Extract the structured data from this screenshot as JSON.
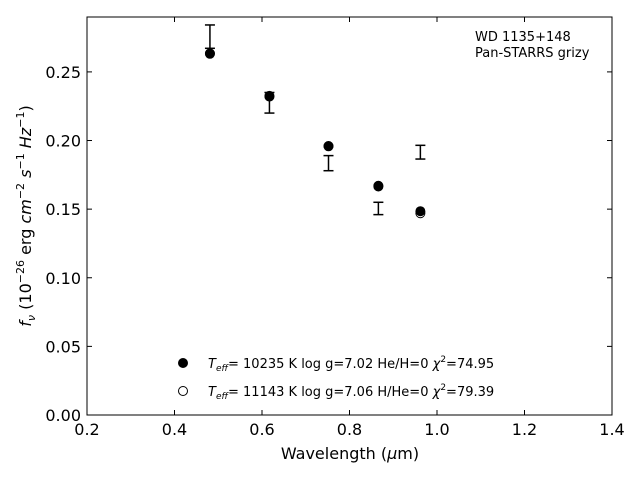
{
  "chart_data": {
    "type": "scatter",
    "annotation": [
      "WD 1135+148",
      "Pan-STARRS grizy"
    ],
    "xlabel": "Wavelength (μm)",
    "ylabel": "f_ν (10^−26 erg cm^−2 s^−1 Hz^−1)",
    "xlim": [
      0.2,
      1.4
    ],
    "ylim": [
      0.0,
      0.29
    ],
    "xticks": [
      "0.2",
      "0.4",
      "0.6",
      "0.8",
      "1.0",
      "1.2",
      "1.4"
    ],
    "yticks": [
      "0.00",
      "0.05",
      "0.10",
      "0.15",
      "0.20",
      "0.25"
    ],
    "grid": false,
    "observed": {
      "x": [
        0.481,
        0.617,
        0.752,
        0.866,
        0.962
      ],
      "y": [
        0.2757,
        0.2275,
        0.1835,
        0.1505,
        0.1915
      ],
      "err": [
        0.0085,
        0.0075,
        0.0055,
        0.0045,
        0.005
      ]
    },
    "series": [
      {
        "x": [
          0.481,
          0.617,
          0.752,
          0.866,
          0.962
        ],
        "y": [
          0.2635,
          0.2325,
          0.196,
          0.167,
          0.1485
        ],
        "marker": "filled"
      },
      {
        "x": [
          0.481,
          0.617,
          0.752,
          0.866,
          0.962
        ],
        "y": [
          0.2632,
          0.232,
          0.1958,
          0.1665,
          0.147
        ],
        "marker": "open"
      }
    ],
    "legend": {
      "position": "bottom-center",
      "entries": [
        {
          "teff": "10235 K",
          "logg": "log g=7.02",
          "comp": "He/H=0",
          "chi2": "=74.95"
        },
        {
          "teff": "11143 K",
          "logg": "log g=7.06",
          "comp": "H/He=0",
          "chi2": "=79.39"
        }
      ]
    }
  }
}
